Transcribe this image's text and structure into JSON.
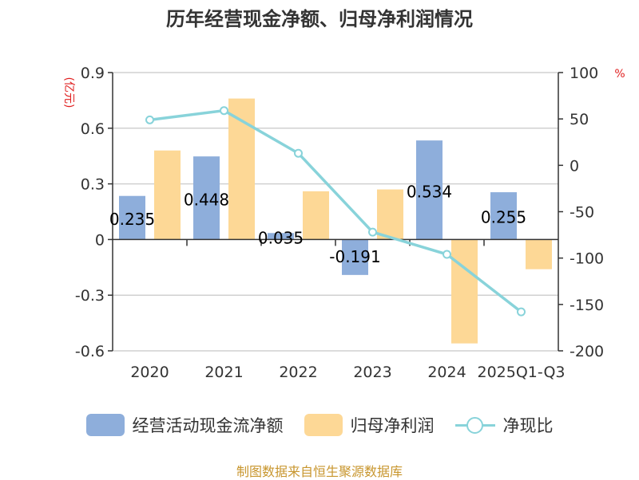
{
  "chart_data": {
    "type": "bar",
    "title": "历年经营现金净额、归母净利润情况",
    "categories": [
      "2020",
      "2021",
      "2022",
      "2023",
      "2024",
      "2025Q1-Q3"
    ],
    "left_axis": {
      "unit": "(亿元)",
      "ylim": [
        -0.6,
        0.9
      ],
      "ticks": [
        "0.9",
        "0.6",
        "0.3",
        "0",
        "-0.3",
        "-0.6"
      ]
    },
    "right_axis": {
      "unit": "%",
      "ylim": [
        -200,
        100
      ],
      "ticks": [
        "100",
        "50",
        "0",
        "-50",
        "-100",
        "-150",
        "-200"
      ]
    },
    "series": [
      {
        "name": "经营活动现金流净额",
        "type": "bar",
        "axis": "left",
        "color": "#8eaedb",
        "values": [
          0.235,
          0.448,
          0.035,
          -0.191,
          0.534,
          0.255
        ],
        "labels": [
          "0.235",
          "0.448",
          "0.035",
          "-0.191",
          "0.534",
          "0.255"
        ]
      },
      {
        "name": "归母净利润",
        "type": "bar",
        "axis": "left",
        "color": "#fdd896",
        "values": [
          0.48,
          0.76,
          0.26,
          0.27,
          -0.56,
          -0.16
        ]
      },
      {
        "name": "净现比",
        "type": "line",
        "axis": "right",
        "color": "#88d3da",
        "values": [
          49,
          59,
          13,
          -72,
          -96,
          -158
        ]
      }
    ],
    "grid": true
  },
  "legend": {
    "cash_flow": "经营活动现金流净额",
    "net_profit": "归母净利润",
    "ratio": "净现比"
  },
  "source": "制图数据来自恒生聚源数据库"
}
